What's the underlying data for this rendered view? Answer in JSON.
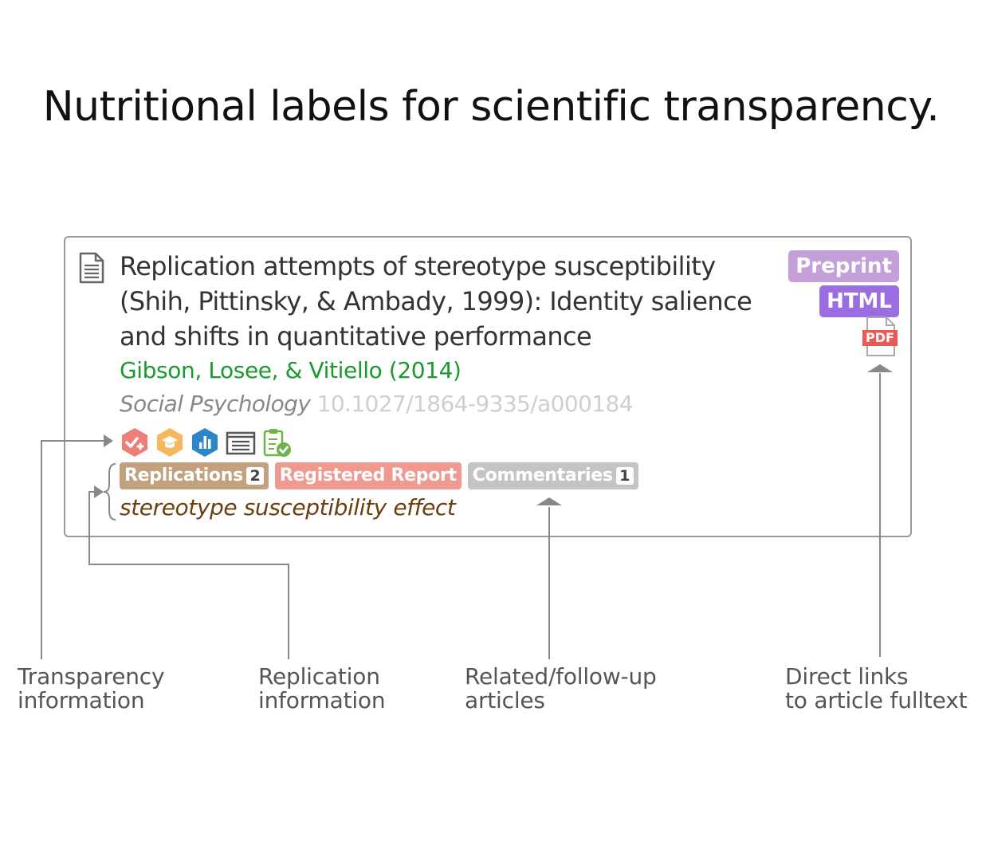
{
  "heading": "Nutritional labels for scientific transparency.",
  "article": {
    "title": "Replication attempts of stereotype susceptibility (Shih, Pittinsky, & Ambady, 1999): Identity salience and shifts in quantitative performance",
    "authors": "Gibson, Losee, & Vitiello (2014)",
    "journal": "Social Psychology",
    "doi": "10.1027/1864-9335/a000184",
    "effect": "stereotype susceptibility effect"
  },
  "links": {
    "preprint": "Preprint",
    "html": "HTML",
    "pdf": "PDF"
  },
  "tags": {
    "replications_label": "Replications",
    "replications_count": "2",
    "registered_report_label": "Registered Report",
    "commentaries_label": "Commentaries",
    "commentaries_count": "1"
  },
  "badges": [
    "preregistered-badge",
    "open-materials-badge",
    "open-data-badge",
    "open-article-badge",
    "reporting-checklist-badge"
  ],
  "colors": {
    "authors": "#1a9a2f",
    "preprint": "#c49fd9",
    "html": "#9a6ee0",
    "pdf": "#e85a55",
    "replications": "#c2a27e",
    "registered_report": "#ee9a90",
    "commentaries": "#c4c4c4",
    "effect": "#6b3e0e"
  },
  "annotations": {
    "transparency_line1": "Transparency",
    "transparency_line2": "information",
    "replication_line1": "Replication",
    "replication_line2": "information",
    "related_line1": "Related/follow-up",
    "related_line2": "articles",
    "direct_line1": "Direct links",
    "direct_line2": "to article fulltext"
  }
}
